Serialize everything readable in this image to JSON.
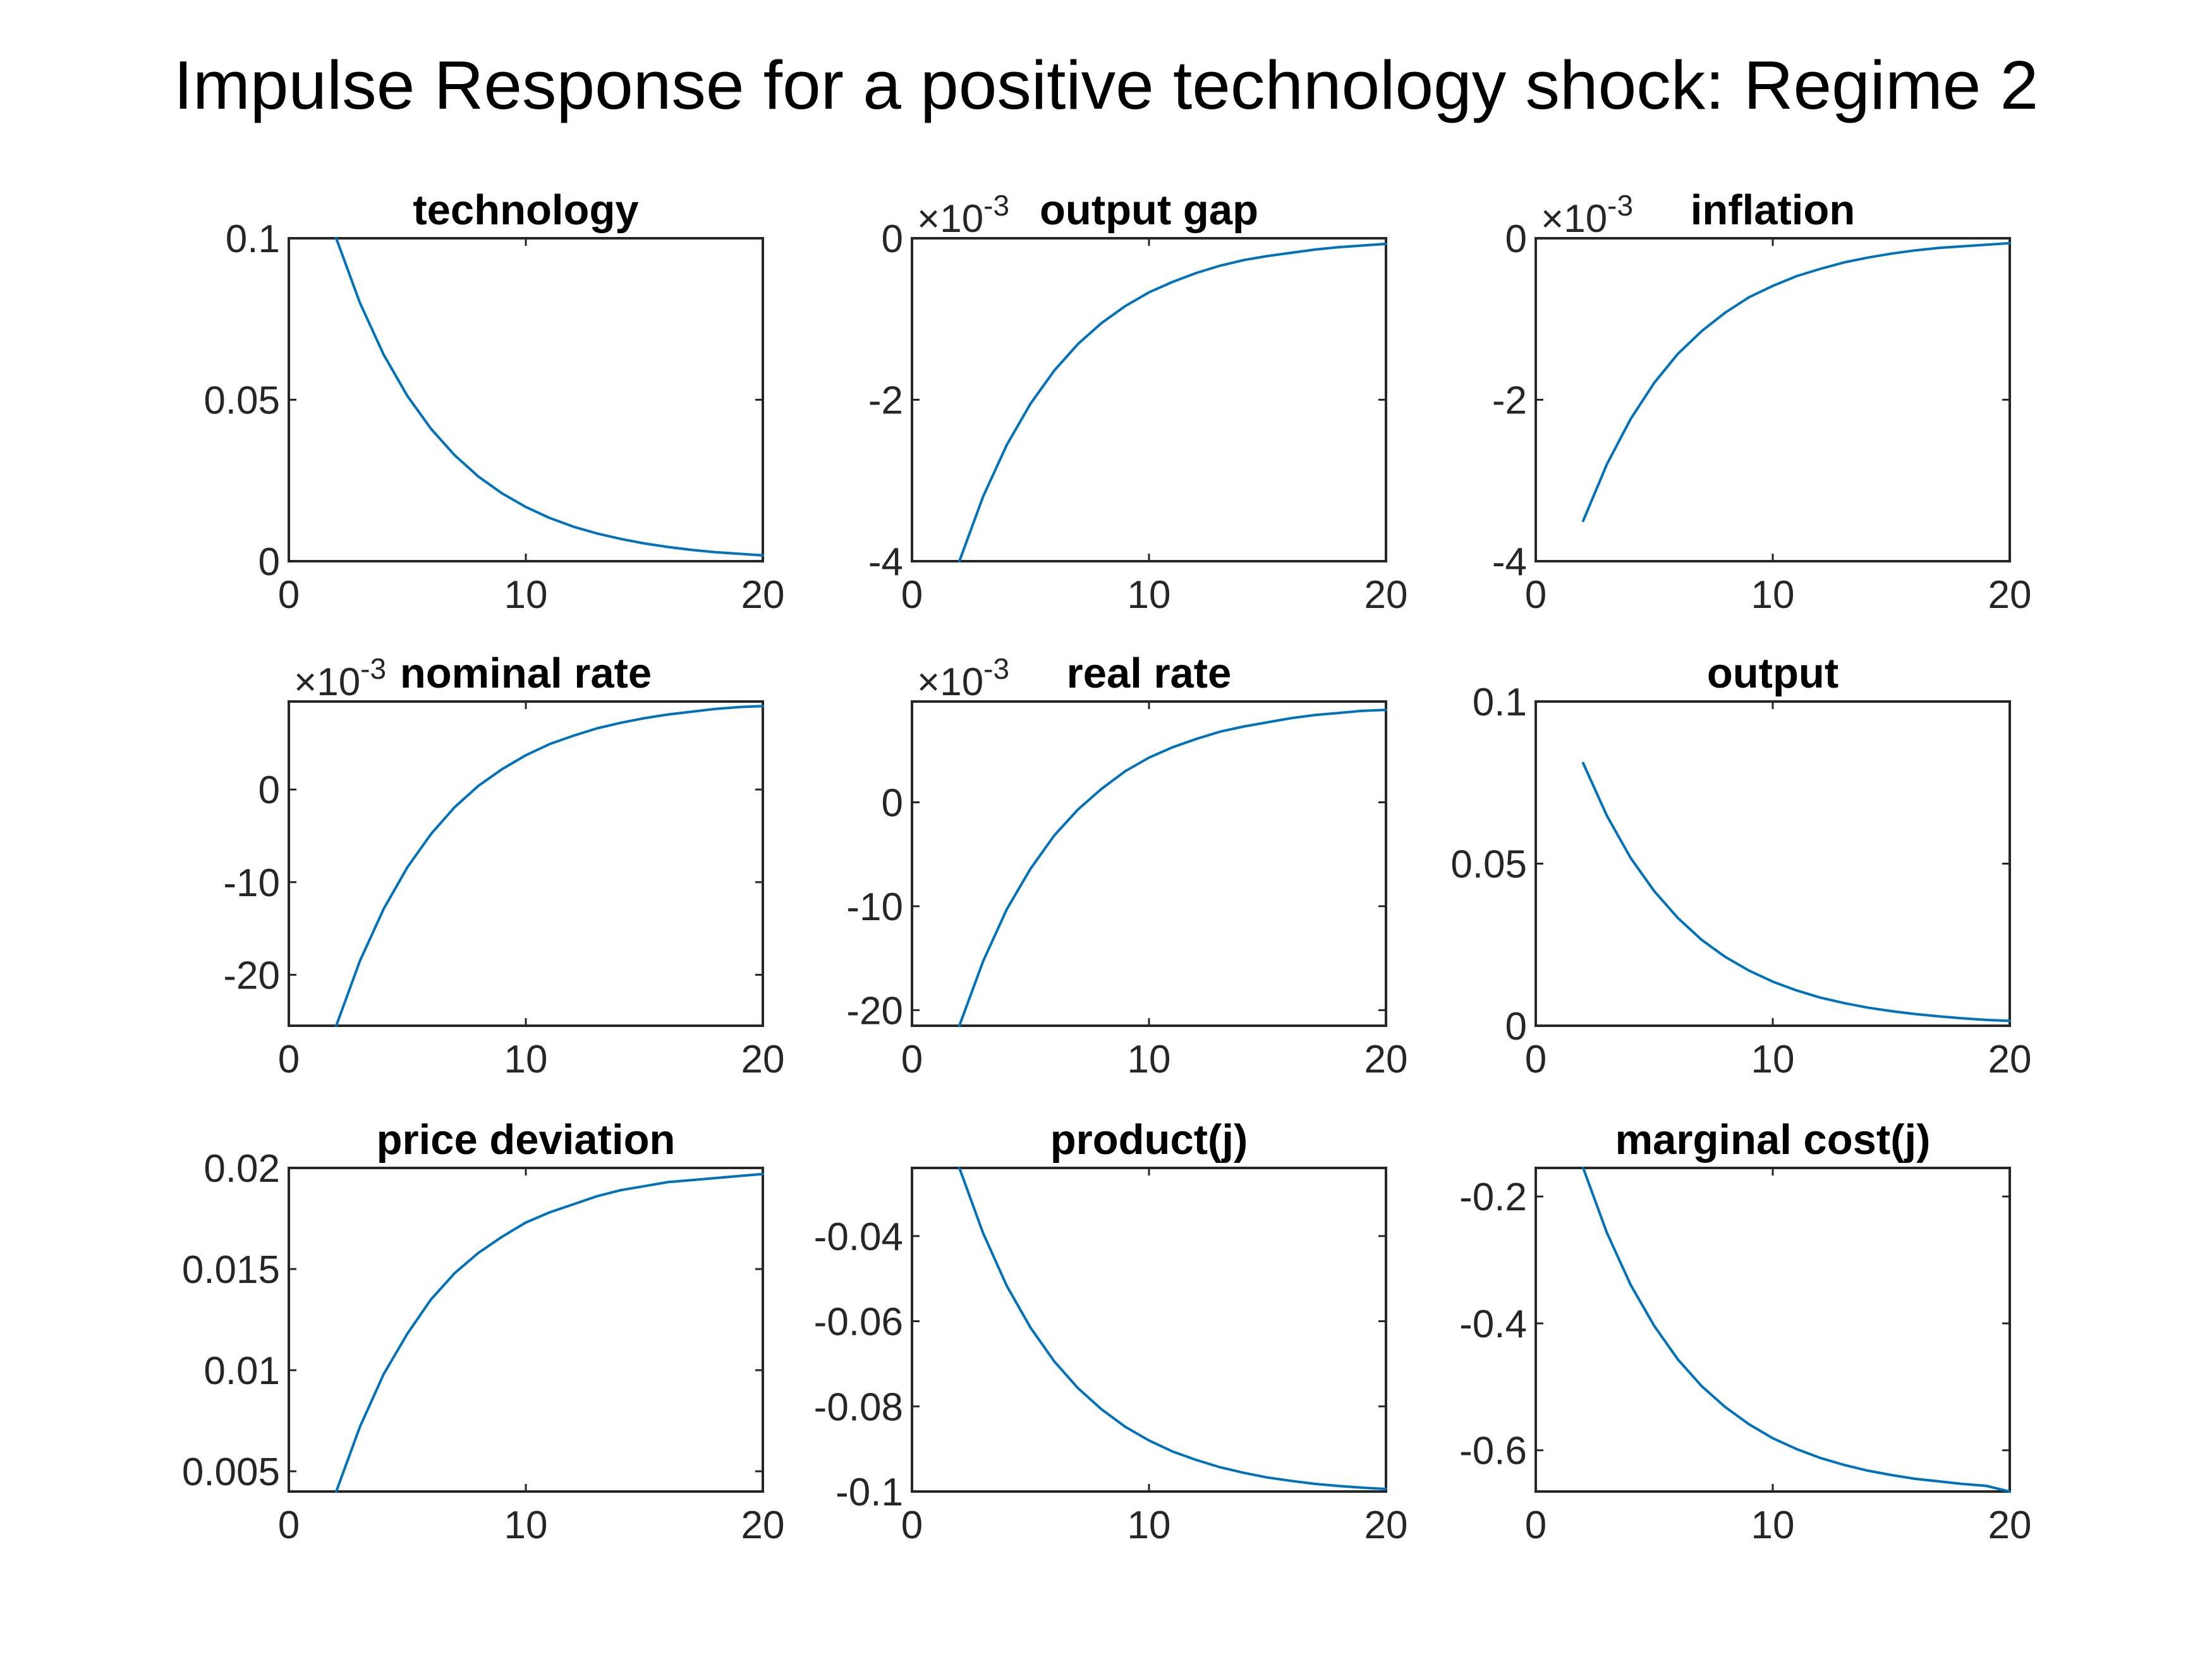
{
  "figure": {
    "title": "Impulse Response for a positive technology shock: Regime 2",
    "line_color": "#0072BD",
    "axis_color": "#262626"
  },
  "chart_data": [
    {
      "id": "technology",
      "type": "line",
      "title": "technology",
      "xlabel": "",
      "ylabel": "",
      "xlim": [
        0,
        20
      ],
      "ylim": [
        0,
        0.1
      ],
      "exponent": "",
      "xticks": [
        0,
        10,
        20
      ],
      "xtick_labels": [
        "0",
        "10",
        "20"
      ],
      "yticks": [
        0,
        0.05,
        0.1
      ],
      "ytick_labels": [
        "0",
        "0.05",
        "0.1"
      ],
      "grid": false,
      "x": [
        2,
        3,
        4,
        5,
        6,
        7,
        8,
        9,
        10,
        11,
        12,
        13,
        14,
        15,
        16,
        17,
        18,
        19,
        20
      ],
      "y": [
        0.1,
        0.08,
        0.064,
        0.0512,
        0.041,
        0.0328,
        0.0262,
        0.021,
        0.0168,
        0.0134,
        0.0107,
        0.0086,
        0.0069,
        0.0055,
        0.0044,
        0.0035,
        0.0028,
        0.0023,
        0.0018
      ]
    },
    {
      "id": "output-gap",
      "type": "line",
      "title": "output gap",
      "xlabel": "",
      "ylabel": "",
      "xlim": [
        0,
        20
      ],
      "ylim": [
        -4,
        0
      ],
      "exponent": "-3",
      "xticks": [
        0,
        10,
        20
      ],
      "xtick_labels": [
        "0",
        "10",
        "20"
      ],
      "yticks": [
        -4,
        -2,
        0
      ],
      "ytick_labels": [
        "-4",
        "-2",
        "0"
      ],
      "grid": false,
      "x": [
        2,
        3,
        4,
        5,
        6,
        7,
        8,
        9,
        10,
        11,
        12,
        13,
        14,
        15,
        16,
        17,
        18,
        19,
        20
      ],
      "y": [
        -4.0,
        -3.2,
        -2.56,
        -2.05,
        -1.64,
        -1.31,
        -1.05,
        -0.84,
        -0.67,
        -0.54,
        -0.43,
        -0.34,
        -0.27,
        -0.22,
        -0.18,
        -0.14,
        -0.11,
        -0.09,
        -0.07
      ]
    },
    {
      "id": "inflation",
      "type": "line",
      "title": "inflation",
      "xlabel": "",
      "ylabel": "",
      "xlim": [
        0,
        20
      ],
      "ylim": [
        -4,
        0
      ],
      "exponent": "-3",
      "xticks": [
        0,
        10,
        20
      ],
      "xtick_labels": [
        "0",
        "10",
        "20"
      ],
      "yticks": [
        -4,
        -2,
        0
      ],
      "ytick_labels": [
        "-4",
        "-2",
        "0"
      ],
      "grid": false,
      "x": [
        2,
        3,
        4,
        5,
        6,
        7,
        8,
        9,
        10,
        11,
        12,
        13,
        14,
        15,
        16,
        17,
        18,
        19,
        20
      ],
      "y": [
        -3.5,
        -2.8,
        -2.24,
        -1.79,
        -1.43,
        -1.15,
        -0.92,
        -0.73,
        -0.59,
        -0.47,
        -0.38,
        -0.3,
        -0.24,
        -0.19,
        -0.15,
        -0.12,
        -0.1,
        -0.08,
        -0.06
      ]
    },
    {
      "id": "nominal-rate",
      "type": "line",
      "title": "nominal rate",
      "xlabel": "",
      "ylabel": "",
      "xlim": [
        0,
        20
      ],
      "ylim": [
        -25.5,
        9.5
      ],
      "exponent": "-3",
      "xticks": [
        0,
        10,
        20
      ],
      "xtick_labels": [
        "0",
        "10",
        "20"
      ],
      "yticks": [
        -20,
        -10,
        0
      ],
      "ytick_labels": [
        "-20",
        "-10",
        "0"
      ],
      "grid": false,
      "x": [
        2,
        3,
        4,
        5,
        6,
        7,
        8,
        9,
        10,
        11,
        12,
        13,
        14,
        15,
        16,
        17,
        18,
        19,
        20
      ],
      "y": [
        -25.5,
        -18.5,
        -12.9,
        -8.4,
        -4.8,
        -1.9,
        0.4,
        2.2,
        3.7,
        4.9,
        5.8,
        6.6,
        7.2,
        7.7,
        8.1,
        8.4,
        8.7,
        8.9,
        9.0
      ]
    },
    {
      "id": "real-rate",
      "type": "line",
      "title": "real rate",
      "xlabel": "",
      "ylabel": "",
      "xlim": [
        0,
        20
      ],
      "ylim": [
        -21.5,
        9.7
      ],
      "exponent": "-3",
      "xticks": [
        0,
        10,
        20
      ],
      "xtick_labels": [
        "0",
        "10",
        "20"
      ],
      "yticks": [
        -20,
        -10,
        0
      ],
      "ytick_labels": [
        "-20",
        "-10",
        "0"
      ],
      "grid": false,
      "x": [
        2,
        3,
        4,
        5,
        6,
        7,
        8,
        9,
        10,
        11,
        12,
        13,
        14,
        15,
        16,
        17,
        18,
        19,
        20
      ],
      "y": [
        -21.5,
        -15.3,
        -10.3,
        -6.4,
        -3.2,
        -0.7,
        1.3,
        3.0,
        4.3,
        5.3,
        6.1,
        6.8,
        7.3,
        7.7,
        8.1,
        8.4,
        8.6,
        8.8,
        8.9
      ]
    },
    {
      "id": "output",
      "type": "line",
      "title": "output",
      "xlabel": "",
      "ylabel": "",
      "xlim": [
        0,
        20
      ],
      "ylim": [
        0,
        0.1
      ],
      "exponent": "",
      "xticks": [
        0,
        10,
        20
      ],
      "xtick_labels": [
        "0",
        "10",
        "20"
      ],
      "yticks": [
        0,
        0.05,
        0.1
      ],
      "ytick_labels": [
        "0",
        "0.05",
        "0.1"
      ],
      "grid": false,
      "x": [
        2,
        3,
        4,
        5,
        6,
        7,
        8,
        9,
        10,
        11,
        12,
        13,
        14,
        15,
        16,
        17,
        18,
        19,
        20
      ],
      "y": [
        0.081,
        0.0648,
        0.0518,
        0.0415,
        0.0332,
        0.0265,
        0.0212,
        0.017,
        0.0136,
        0.0109,
        0.0087,
        0.007,
        0.0056,
        0.0045,
        0.0036,
        0.0029,
        0.0023,
        0.0018,
        0.0015
      ]
    },
    {
      "id": "price-deviation",
      "type": "line",
      "title": "price deviation",
      "xlabel": "",
      "ylabel": "",
      "xlim": [
        0,
        20
      ],
      "ylim": [
        0.004,
        0.02
      ],
      "exponent": "",
      "xticks": [
        0,
        10,
        20
      ],
      "xtick_labels": [
        "0",
        "10",
        "20"
      ],
      "yticks": [
        0.005,
        0.01,
        0.015,
        0.02
      ],
      "ytick_labels": [
        "0.005",
        "0.01",
        "0.015",
        "0.02"
      ],
      "grid": false,
      "x": [
        2,
        3,
        4,
        5,
        6,
        7,
        8,
        9,
        10,
        11,
        12,
        13,
        14,
        15,
        16,
        17,
        18,
        19,
        20
      ],
      "y": [
        0.004,
        0.0072,
        0.0098,
        0.0118,
        0.0135,
        0.0148,
        0.0158,
        0.0166,
        0.0173,
        0.0178,
        0.0182,
        0.0186,
        0.0189,
        0.0191,
        0.0193,
        0.0194,
        0.0195,
        0.0196,
        0.0197
      ]
    },
    {
      "id": "product-j",
      "type": "line",
      "title": "product(j)",
      "xlabel": "",
      "ylabel": "",
      "xlim": [
        0,
        20
      ],
      "ylim": [
        -0.1,
        -0.024
      ],
      "exponent": "",
      "xticks": [
        0,
        10,
        20
      ],
      "xtick_labels": [
        "0",
        "10",
        "20"
      ],
      "yticks": [
        -0.1,
        -0.08,
        -0.06,
        -0.04
      ],
      "ytick_labels": [
        "-0.1",
        "-0.08",
        "-0.06",
        "-0.04"
      ],
      "grid": false,
      "x": [
        2,
        3,
        4,
        5,
        6,
        7,
        8,
        9,
        10,
        11,
        12,
        13,
        14,
        15,
        16,
        17,
        18,
        19,
        20
      ],
      "y": [
        -0.024,
        -0.0393,
        -0.0517,
        -0.0615,
        -0.0694,
        -0.0757,
        -0.0807,
        -0.0848,
        -0.088,
        -0.0906,
        -0.0926,
        -0.0943,
        -0.0956,
        -0.0967,
        -0.0975,
        -0.0982,
        -0.0987,
        -0.0991,
        -0.0994
      ]
    },
    {
      "id": "marginal-cost-j",
      "type": "line",
      "title": "marginal cost(j)",
      "xlabel": "",
      "ylabel": "",
      "xlim": [
        0,
        20
      ],
      "ylim": [
        -0.665,
        -0.155
      ],
      "exponent": "",
      "xticks": [
        0,
        10,
        20
      ],
      "xtick_labels": [
        "0",
        "10",
        "20"
      ],
      "yticks": [
        -0.6,
        -0.4,
        -0.2
      ],
      "ytick_labels": [
        "-0.6",
        "-0.4",
        "-0.2"
      ],
      "grid": false,
      "x": [
        2,
        3,
        4,
        5,
        6,
        7,
        8,
        9,
        10,
        11,
        12,
        13,
        14,
        15,
        16,
        17,
        18,
        19,
        20
      ],
      "y": [
        -0.155,
        -0.257,
        -0.339,
        -0.404,
        -0.457,
        -0.499,
        -0.532,
        -0.559,
        -0.581,
        -0.598,
        -0.612,
        -0.623,
        -0.632,
        -0.639,
        -0.645,
        -0.649,
        -0.653,
        -0.656,
        -0.665
      ]
    }
  ]
}
